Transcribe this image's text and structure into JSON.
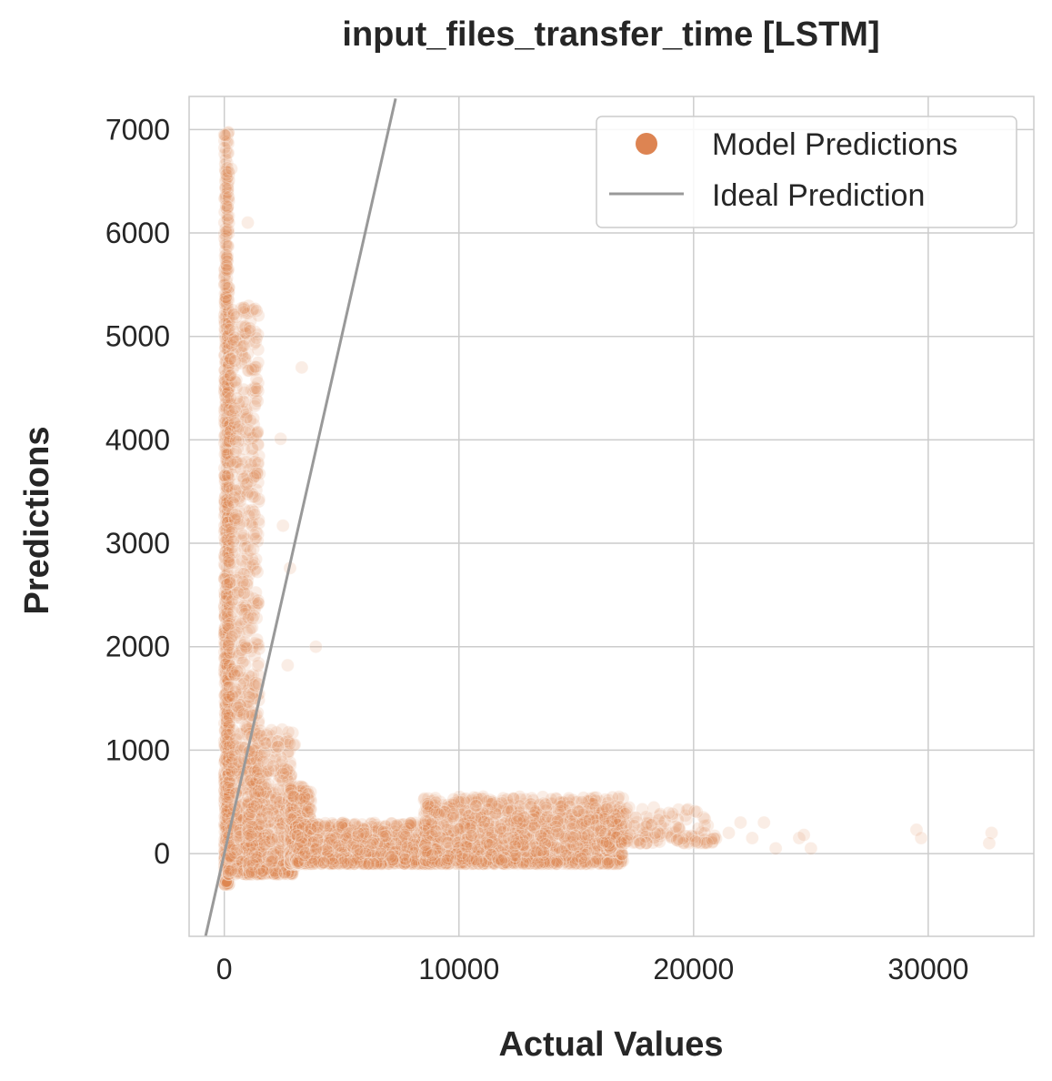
{
  "chart_data": {
    "type": "scatter",
    "title": "input_files_transfer_time [LSTM]",
    "xlabel": "Actual Values",
    "ylabel": "Predictions",
    "xlim": [
      -1500,
      34500
    ],
    "ylim": [
      -800,
      7320
    ],
    "x_ticks": [
      0,
      10000,
      20000,
      30000
    ],
    "y_ticks": [
      0,
      1000,
      2000,
      3000,
      4000,
      5000,
      6000,
      7000
    ],
    "grid": true,
    "legend_position": "top-right",
    "series": [
      {
        "name": "Model Predictions",
        "kind": "scatter",
        "color": "#dd8452",
        "opacity": 0.15,
        "clusters": [
          {
            "x_range": [
              0,
              200
            ],
            "y_range": [
              -300,
              7000
            ],
            "count": 900
          },
          {
            "x_range": [
              100,
              1500
            ],
            "y_range": [
              -200,
              5300
            ],
            "count": 900
          },
          {
            "x_range": [
              1000,
              3000
            ],
            "y_range": [
              -200,
              1200
            ],
            "count": 500
          },
          {
            "x_range": [
              2800,
              3700
            ],
            "y_range": [
              -100,
              650
            ],
            "count": 350
          },
          {
            "x_range": [
              3000,
              9000
            ],
            "y_range": [
              -100,
              300
            ],
            "count": 900
          },
          {
            "x_range": [
              8500,
              17000
            ],
            "y_range": [
              -100,
              550
            ],
            "count": 1400
          },
          {
            "x_range": [
              16000,
              21000
            ],
            "y_range": [
              100,
              450
            ],
            "count": 160
          }
        ],
        "points": [
          {
            "x": 3300,
            "y": 4700
          },
          {
            "x": 3900,
            "y": 2000
          },
          {
            "x": 2700,
            "y": 1820
          },
          {
            "x": 2400,
            "y": 4010
          },
          {
            "x": 2500,
            "y": 3170
          },
          {
            "x": 2800,
            "y": 2760
          },
          {
            "x": 1000,
            "y": 6100
          },
          {
            "x": 0,
            "y": 6950
          },
          {
            "x": 300,
            "y": 6620
          },
          {
            "x": 21500,
            "y": 200
          },
          {
            "x": 22500,
            "y": 150
          },
          {
            "x": 23000,
            "y": 300
          },
          {
            "x": 23500,
            "y": 50
          },
          {
            "x": 24500,
            "y": 150
          },
          {
            "x": 25000,
            "y": 50
          },
          {
            "x": 24700,
            "y": 180
          },
          {
            "x": 22000,
            "y": 300
          },
          {
            "x": 29500,
            "y": 230
          },
          {
            "x": 29700,
            "y": 150
          },
          {
            "x": 32700,
            "y": 200
          },
          {
            "x": 32600,
            "y": 100
          }
        ]
      },
      {
        "name": "Ideal Prediction",
        "kind": "line",
        "color": "#999999",
        "x": [
          -800,
          7300
        ],
        "y": [
          -800,
          7300
        ]
      }
    ]
  }
}
